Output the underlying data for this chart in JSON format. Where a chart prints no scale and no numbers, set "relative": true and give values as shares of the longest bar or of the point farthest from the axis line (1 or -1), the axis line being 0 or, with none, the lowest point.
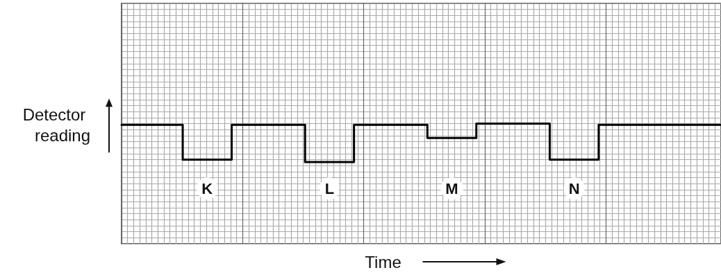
{
  "chart_data": {
    "type": "step",
    "relative": true,
    "xlabel": "Time",
    "ylabel": "Detector reading",
    "grid": true,
    "line_style": "solid",
    "categories": [
      null,
      null,
      null,
      null,
      null,
      null,
      null,
      null,
      null,
      null,
      null,
      null,
      null,
      null,
      null,
      null,
      null,
      null,
      null,
      null,
      null,
      null,
      null,
      null,
      null,
      null,
      null,
      null,
      null,
      null,
      null,
      null,
      null,
      null,
      null,
      null,
      null,
      null,
      null,
      null,
      null,
      null,
      null,
      null,
      null,
      null,
      null,
      null,
      null,
      null
    ],
    "series": [
      {
        "color": "#000000",
        "values": [
          0.99,
          0.99,
          0.99,
          0.99,
          0.99,
          0.7,
          0.7,
          0.7,
          0.7,
          0.99,
          0.99,
          0.99,
          0.99,
          0.99,
          0.99,
          0.68,
          0.68,
          0.68,
          0.68,
          0.99,
          0.99,
          0.99,
          0.99,
          0.99,
          0.99,
          0.88,
          0.88,
          0.88,
          0.88,
          1,
          1,
          1,
          1,
          1,
          1,
          0.7,
          0.7,
          0.7,
          0.7,
          0.99,
          0.99,
          0.99,
          0.99,
          0.99,
          0.99,
          0.99,
          0.99,
          0.99,
          0.99,
          0.99
        ]
      }
    ],
    "annotations": [
      "K",
      "L",
      "M",
      "N"
    ]
  }
}
